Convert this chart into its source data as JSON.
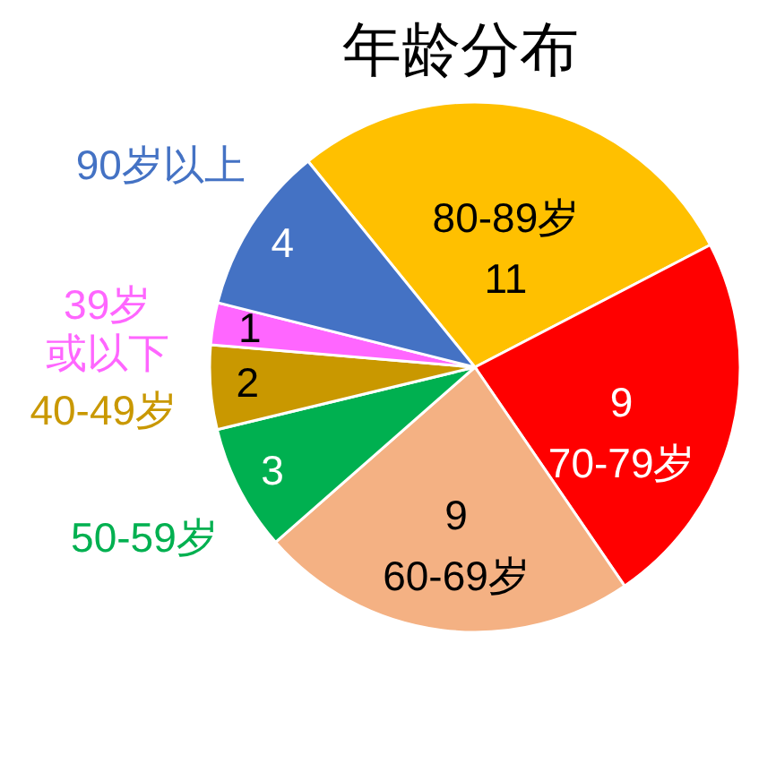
{
  "chart_data": {
    "type": "pie",
    "title": "年龄分布",
    "categories": [
      "80-89岁",
      "70-79岁",
      "60-69岁",
      "50-59岁",
      "40-49岁",
      "39岁或以下",
      "90岁以上"
    ],
    "values": [
      11,
      9,
      9,
      3,
      2,
      1,
      4
    ],
    "colors": [
      "#ffc000",
      "#ff0000",
      "#f4b183",
      "#00b050",
      "#c99800",
      "#ff66ff",
      "#4472c4"
    ],
    "data_labels": true
  }
}
